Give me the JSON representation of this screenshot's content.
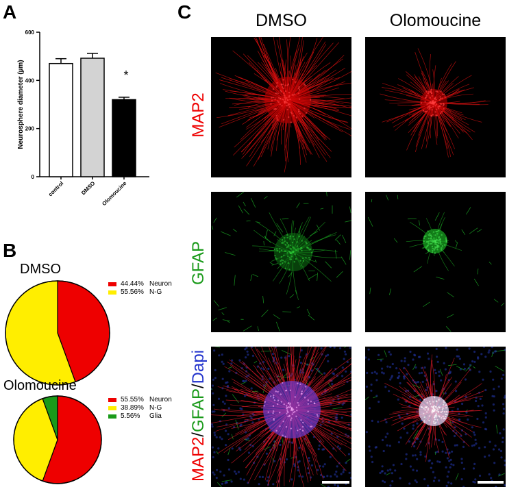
{
  "panels": {
    "a": "A",
    "b": "B",
    "c": "C"
  },
  "colors": {
    "red": "#ee0000",
    "yellow": "#ffee00",
    "green": "#1a9a1a",
    "blue": "#2233cc",
    "bar_control": "#ffffff",
    "bar_dmso": "#d3d3d3",
    "bar_olomoucine": "#000000"
  },
  "chart_data": [
    {
      "type": "bar",
      "title": "",
      "xlabel": "",
      "ylabel": "Neurosphere diameter (µm)",
      "ylim": [
        0,
        600
      ],
      "yticks": [
        "0",
        "200",
        "400",
        "600"
      ],
      "categories": [
        "control",
        "DMSO",
        "Olomoucine"
      ],
      "values": [
        470,
        492,
        320
      ],
      "errors": [
        20,
        20,
        10
      ],
      "annotations": [
        "",
        "",
        "*"
      ]
    },
    {
      "type": "pie",
      "title": "DMSO",
      "slices": [
        {
          "label": "Neuron",
          "pct_label": "44.44%",
          "value": 44.44,
          "color": "#ee0000"
        },
        {
          "label": "N-G",
          "pct_label": "55.56%",
          "value": 55.56,
          "color": "#ffee00"
        }
      ]
    },
    {
      "type": "pie",
      "title": "Olomoucine",
      "slices": [
        {
          "label": "Neuron",
          "pct_label": "55.55%",
          "value": 55.55,
          "color": "#ee0000"
        },
        {
          "label": "N-G",
          "pct_label": "38.89%",
          "value": 38.89,
          "color": "#ffee00"
        },
        {
          "label": "Glia",
          "pct_label": "5.56%",
          "value": 5.56,
          "color": "#1a9a1a"
        }
      ]
    }
  ],
  "micrographs": {
    "columns": [
      "DMSO",
      "Olomoucine"
    ],
    "rows": [
      {
        "parts": [
          {
            "text": "MAP2",
            "color": "#ee0000"
          }
        ]
      },
      {
        "parts": [
          {
            "text": "GFAP",
            "color": "#1a9a1a"
          }
        ]
      },
      {
        "parts": [
          {
            "text": "MAP2",
            "color": "#ee0000"
          },
          {
            "text": "/",
            "color": "#000000"
          },
          {
            "text": "GFAP",
            "color": "#1a9a1a"
          },
          {
            "text": "/",
            "color": "#000000"
          },
          {
            "text": "Dapi",
            "color": "#2233cc"
          }
        ]
      }
    ]
  }
}
